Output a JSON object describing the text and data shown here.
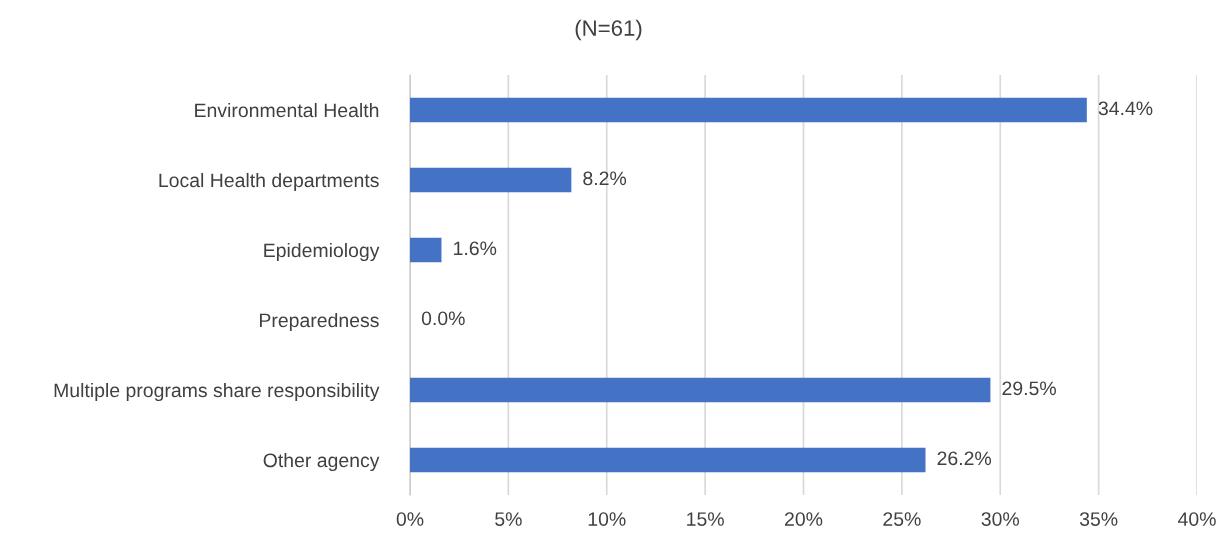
{
  "chart_data": {
    "type": "bar",
    "orientation": "horizontal",
    "title": "(N=61)",
    "categories": [
      "Environmental Health",
      "Local Health departments",
      "Epidemiology",
      "Preparedness",
      "Multiple programs share responsibility",
      "Other agency"
    ],
    "values": [
      34.4,
      8.2,
      1.6,
      0.0,
      29.5,
      26.2
    ],
    "value_labels": [
      "34.4%",
      "8.2%",
      "1.6%",
      "0.0%",
      "29.5%",
      "26.2%"
    ],
    "color": "#4472c4",
    "xlim": [
      0,
      40
    ],
    "xticks": [
      {
        "value": 0,
        "label": "0%"
      },
      {
        "value": 5,
        "label": "5%"
      },
      {
        "value": 10,
        "label": "10%"
      },
      {
        "value": 15,
        "label": "15%"
      },
      {
        "value": 20,
        "label": "20%"
      },
      {
        "value": 25,
        "label": "25%"
      },
      {
        "value": 30,
        "label": "30%"
      },
      {
        "value": 35,
        "label": "35%"
      },
      {
        "value": 40,
        "label": "40%"
      }
    ],
    "grid": "x"
  }
}
